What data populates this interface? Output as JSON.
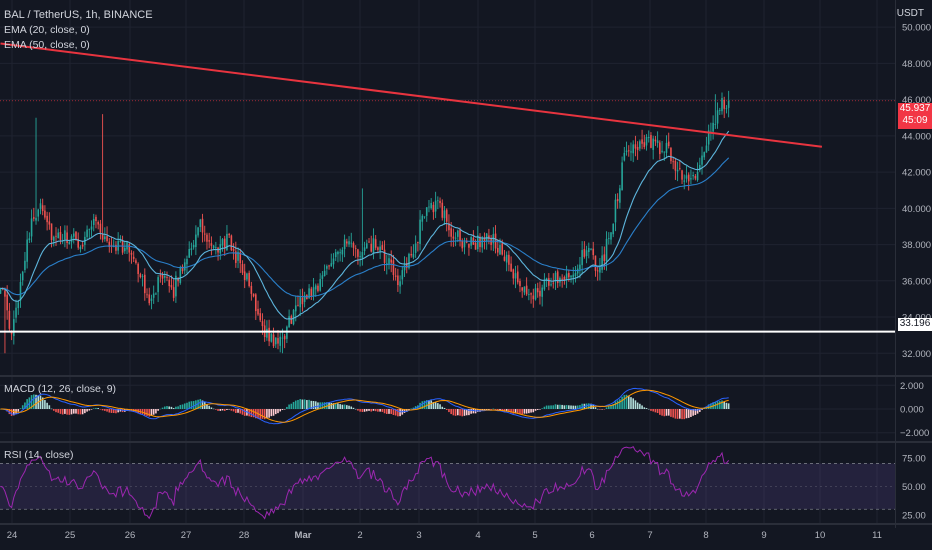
{
  "header": {
    "title": "BAL / TetherUS, 1h, BINANCE",
    "ema20_label": "EMA (20, close, 0)",
    "ema50_label": "EMA (50, close, 0)",
    "currency": "USDT"
  },
  "indicators": {
    "macd_label": "MACD (12, 26, close, 9)",
    "rsi_label": "RSI (14, close)"
  },
  "price_badges": {
    "current_price": "45.937",
    "countdown": "45:09",
    "support_level": "33.196"
  },
  "colors": {
    "background": "#131722",
    "grid": "#1f2330",
    "candle_up": "#26a69a",
    "candle_down": "#ef5350",
    "ema20": "#5db5dc",
    "ema50": "#2a7fc9",
    "trendline": "#e8343f",
    "support_line": "#ffffff",
    "macd_line": "#2962ff",
    "signal_line": "#ff9800",
    "rsi_line": "#9c27b0",
    "rsi_band": "#7e57c2"
  },
  "chart_data": [
    {
      "type": "candlestick",
      "title": "BAL / TetherUS, 1h, BINANCE",
      "x_ticks": [
        "24",
        "25",
        "26",
        "27",
        "28",
        "Mar",
        "2",
        "3",
        "4",
        "5",
        "6",
        "7",
        "8",
        "9",
        "10",
        "11"
      ],
      "y_ticks": [
        "32.000",
        "34.000",
        "36.000",
        "38.000",
        "40.000",
        "42.000",
        "44.000",
        "46.000",
        "48.000",
        "50.000"
      ],
      "ylim": [
        30.8,
        51.5
      ],
      "price_path_anchors": [
        [
          0,
          36.0
        ],
        [
          5,
          32.8
        ],
        [
          12,
          38.3
        ],
        [
          18,
          40.5
        ],
        [
          24,
          38.2
        ],
        [
          30,
          38.4
        ],
        [
          36,
          38.0
        ],
        [
          42,
          39.5
        ],
        [
          48,
          38.0
        ],
        [
          54,
          38.0
        ],
        [
          60,
          37.5
        ],
        [
          66,
          35.0
        ],
        [
          72,
          36.0
        ],
        [
          78,
          35.5
        ],
        [
          84,
          37.5
        ],
        [
          90,
          39.0
        ],
        [
          96,
          37.5
        ],
        [
          102,
          38.3
        ],
        [
          108,
          37.0
        ],
        [
          114,
          35.0
        ],
        [
          120,
          33.0
        ],
        [
          126,
          32.5
        ],
        [
          132,
          34.3
        ],
        [
          138,
          35.3
        ],
        [
          144,
          35.9
        ],
        [
          150,
          37.6
        ],
        [
          156,
          38.0
        ],
        [
          162,
          37.4
        ],
        [
          168,
          38.0
        ],
        [
          174,
          37.0
        ],
        [
          180,
          36.0
        ],
        [
          186,
          37.6
        ],
        [
          192,
          40.3
        ],
        [
          198,
          40.0
        ],
        [
          204,
          38.5
        ],
        [
          210,
          38.0
        ],
        [
          216,
          38.2
        ],
        [
          222,
          38.3
        ],
        [
          228,
          37.0
        ],
        [
          234,
          35.5
        ],
        [
          240,
          35.3
        ],
        [
          246,
          35.8
        ],
        [
          252,
          36.3
        ],
        [
          258,
          36.5
        ],
        [
          264,
          37.7
        ],
        [
          270,
          36.5
        ],
        [
          276,
          39.5
        ],
        [
          282,
          43.5
        ],
        [
          288,
          43.6
        ],
        [
          294,
          43.5
        ],
        [
          300,
          43.2
        ],
        [
          306,
          42.0
        ],
        [
          312,
          41.4
        ],
        [
          318,
          43.5
        ],
        [
          324,
          45.6
        ],
        [
          328,
          45.9
        ]
      ],
      "series": [
        {
          "name": "EMA (20, close, 0)",
          "values": "ema20"
        },
        {
          "name": "EMA (50, close, 0)",
          "values": "ema50"
        }
      ],
      "trendline": {
        "x": [
          0,
          370
        ],
        "y": [
          49.1,
          43.4
        ]
      },
      "support_line": {
        "y": 33.196
      },
      "last_price": 45.937,
      "grid": true
    },
    {
      "type": "line",
      "title": "MACD (12, 26, close, 9)",
      "y_ticks": [
        "2.000",
        "0.000",
        "−2.000"
      ],
      "ylim": [
        -2.7,
        2.7
      ],
      "series": [
        "macd",
        "signal",
        "histogram"
      ]
    },
    {
      "type": "line",
      "title": "RSI (14, close)",
      "y_ticks": [
        "75.00",
        "50.00",
        "25.00"
      ],
      "ylim": [
        18,
        88
      ],
      "band": [
        30,
        70
      ]
    }
  ]
}
